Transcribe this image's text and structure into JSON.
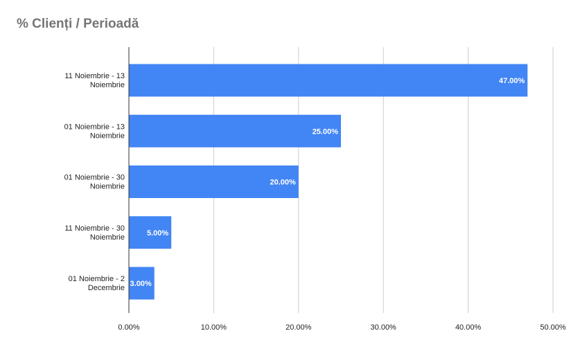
{
  "chart_data": {
    "type": "bar",
    "orientation": "horizontal",
    "title": "% Clienți / Perioadă",
    "categories": [
      [
        "11 Noiembrie - 13",
        "Noiembrie"
      ],
      [
        "01 Noiembrie - 13",
        "Noiembrie"
      ],
      [
        "01 Noiembrie - 30",
        "Noiembrie"
      ],
      [
        "11 Noiembrie - 30",
        "Noiembrie"
      ],
      [
        "01 Noiembrie - 2",
        "Decembrie"
      ]
    ],
    "values": [
      47.0,
      25.0,
      20.0,
      5.0,
      3.0
    ],
    "data_labels": [
      "47.00%",
      "25.00%",
      "20.00%",
      "5.00%",
      "3.00%"
    ],
    "xlim": [
      0,
      50
    ],
    "x_ticks": [
      "0.00%",
      "10.00%",
      "20.00%",
      "30.00%",
      "40.00%",
      "50.00%"
    ],
    "grid": true,
    "legend": "none",
    "colors": {
      "bar": "#4285f4",
      "grid": "#cccccc",
      "axis": "#333333",
      "title": "#757575"
    }
  }
}
